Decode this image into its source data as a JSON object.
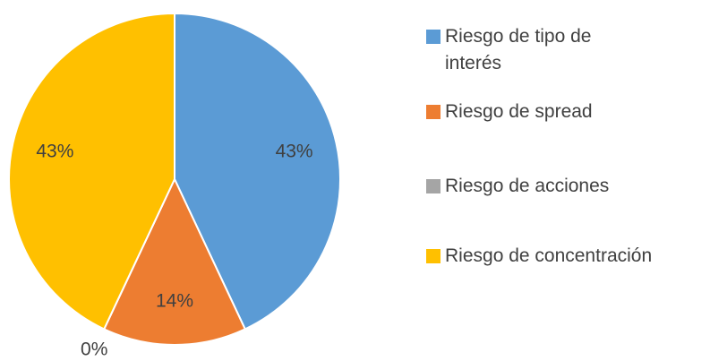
{
  "chart_data": {
    "type": "pie",
    "categories": [
      "Riesgo de tipo de interés",
      "Riesgo de spread",
      "Riesgo de acciones",
      "Riesgo de concentración"
    ],
    "values": [
      43,
      14,
      0,
      43
    ],
    "value_labels": [
      "43%",
      "14%",
      "0%",
      "43%"
    ],
    "colors": [
      "#5b9bd5",
      "#ed7d31",
      "#a5a5a5",
      "#ffc000"
    ],
    "legend": "right"
  }
}
